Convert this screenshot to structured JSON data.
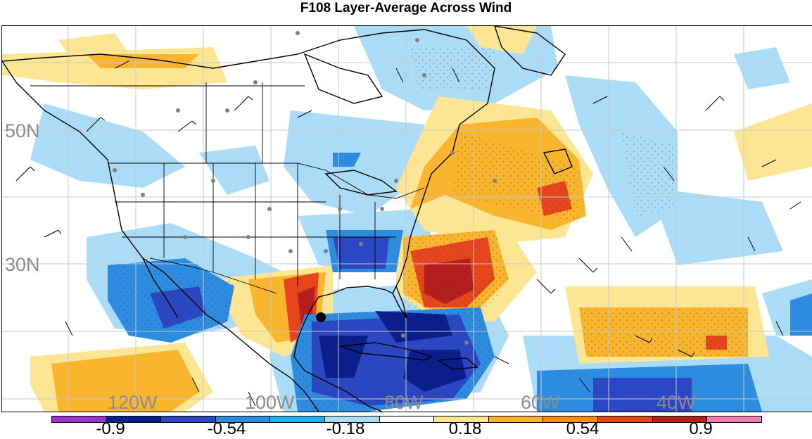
{
  "title": "F108 Layer-Average Across Wind",
  "lat_labels": [
    "50N",
    "30N"
  ],
  "lon_labels": [
    "120W",
    "100W",
    "80W",
    "60W",
    "40W"
  ],
  "colorbar": {
    "colors": [
      "#9a35c8",
      "#0a1f8c",
      "#2c47c3",
      "#2e8ce0",
      "#1fb3ef",
      "#abdcf7",
      "#ffffff",
      "#fce693",
      "#f8b52d",
      "#f18f00",
      "#e6451d",
      "#b61d1d",
      "#ee7faf"
    ],
    "tick_labels": [
      "-0.9",
      "-0.54",
      "-0.18",
      "0.18",
      "0.54",
      "0.9"
    ]
  },
  "map": {
    "projection": "lat-lon",
    "grid_color": "#c8c8c8",
    "coastline_color": "#000000",
    "station_marker_color": "#808080",
    "highlight_marker_color": "#000000",
    "fill_colors": {
      "light_blue": "#abdcf7",
      "mid_blue": "#2e8ce0",
      "royal_blue": "#2c47c3",
      "navy": "#0a1f8c",
      "pale_yellow": "#fce693",
      "orange": "#f8b52d",
      "red_orange": "#e6451d",
      "dark_red": "#b61d1d"
    }
  }
}
